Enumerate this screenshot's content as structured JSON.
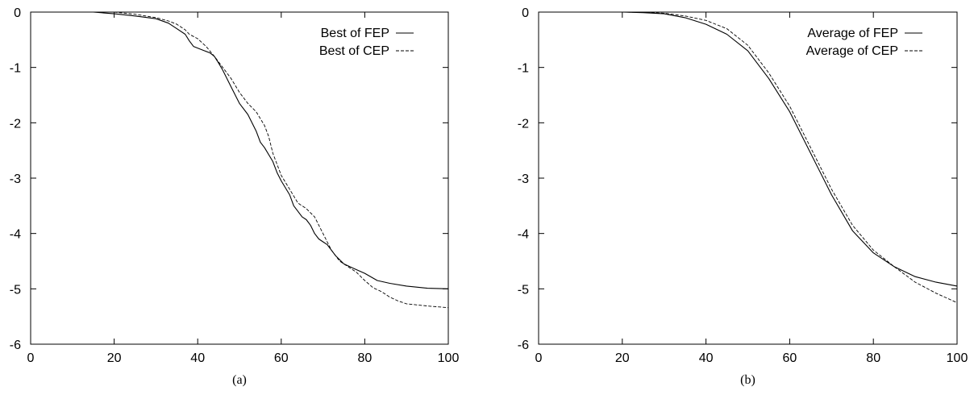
{
  "chart_data": [
    {
      "type": "line",
      "caption": "(a)",
      "xlim": [
        0,
        100
      ],
      "ylim": [
        -6,
        0
      ],
      "xticks": [
        0,
        20,
        40,
        60,
        80,
        100
      ],
      "yticks": [
        0,
        -1,
        -2,
        -3,
        -4,
        -5,
        -6
      ],
      "grid": false,
      "legend_position": "top-right",
      "series": [
        {
          "name": "Best of FEP",
          "style": "solid",
          "x": [
            11,
            15,
            20,
            25,
            30,
            33,
            35,
            37,
            38,
            39,
            41,
            43,
            44,
            45,
            46,
            48,
            50,
            52,
            54,
            55,
            56,
            58,
            59,
            60,
            62,
            63,
            65,
            66,
            67,
            68,
            69,
            70,
            71,
            73,
            75,
            77,
            80,
            83,
            86,
            90,
            95,
            100
          ],
          "y": [
            0,
            0,
            -0.03,
            -0.07,
            -0.12,
            -0.2,
            -0.3,
            -0.4,
            -0.52,
            -0.62,
            -0.68,
            -0.74,
            -0.8,
            -0.92,
            -1.05,
            -1.35,
            -1.65,
            -1.85,
            -2.15,
            -2.35,
            -2.45,
            -2.7,
            -2.9,
            -3.05,
            -3.3,
            -3.5,
            -3.7,
            -3.75,
            -3.85,
            -4.0,
            -4.1,
            -4.15,
            -4.2,
            -4.4,
            -4.55,
            -4.62,
            -4.72,
            -4.85,
            -4.9,
            -4.95,
            -4.99,
            -5.0
          ]
        },
        {
          "name": "Best of CEP",
          "style": "dashed",
          "x": [
            20,
            25,
            30,
            33,
            35,
            37,
            38,
            40,
            42,
            44,
            46,
            48,
            50,
            52,
            54,
            56,
            57,
            58,
            60,
            62,
            64,
            66,
            68,
            70,
            72,
            74,
            76,
            78,
            80,
            82,
            84,
            86,
            88,
            90,
            95,
            100
          ],
          "y": [
            0,
            -0.04,
            -0.1,
            -0.16,
            -0.22,
            -0.32,
            -0.4,
            -0.48,
            -0.62,
            -0.8,
            -1.0,
            -1.2,
            -1.45,
            -1.65,
            -1.8,
            -2.05,
            -2.25,
            -2.55,
            -2.95,
            -3.2,
            -3.45,
            -3.55,
            -3.7,
            -4.0,
            -4.3,
            -4.5,
            -4.6,
            -4.7,
            -4.85,
            -4.98,
            -5.05,
            -5.15,
            -5.22,
            -5.27,
            -5.31,
            -5.34
          ]
        }
      ]
    },
    {
      "type": "line",
      "caption": "(b)",
      "xlim": [
        0,
        100
      ],
      "ylim": [
        -6,
        0
      ],
      "xticks": [
        0,
        20,
        40,
        60,
        80,
        100
      ],
      "yticks": [
        0,
        -1,
        -2,
        -3,
        -4,
        -5,
        -6
      ],
      "grid": false,
      "legend_position": "top-right",
      "series": [
        {
          "name": "Average of FEP",
          "style": "solid",
          "x": [
            20,
            25,
            30,
            35,
            40,
            45,
            50,
            55,
            60,
            65,
            70,
            75,
            80,
            85,
            90,
            95,
            100
          ],
          "y": [
            0,
            -0.01,
            -0.03,
            -0.1,
            -0.22,
            -0.4,
            -0.7,
            -1.2,
            -1.8,
            -2.55,
            -3.3,
            -3.95,
            -4.35,
            -4.6,
            -4.78,
            -4.88,
            -4.95
          ]
        },
        {
          "name": "Average of CEP",
          "style": "dashed",
          "x": [
            20,
            25,
            30,
            35,
            40,
            45,
            50,
            55,
            60,
            65,
            70,
            75,
            80,
            85,
            90,
            95,
            100
          ],
          "y": [
            0,
            -0.005,
            -0.02,
            -0.07,
            -0.15,
            -0.3,
            -0.6,
            -1.1,
            -1.7,
            -2.45,
            -3.2,
            -3.85,
            -4.3,
            -4.6,
            -4.88,
            -5.08,
            -5.25
          ]
        }
      ]
    }
  ]
}
